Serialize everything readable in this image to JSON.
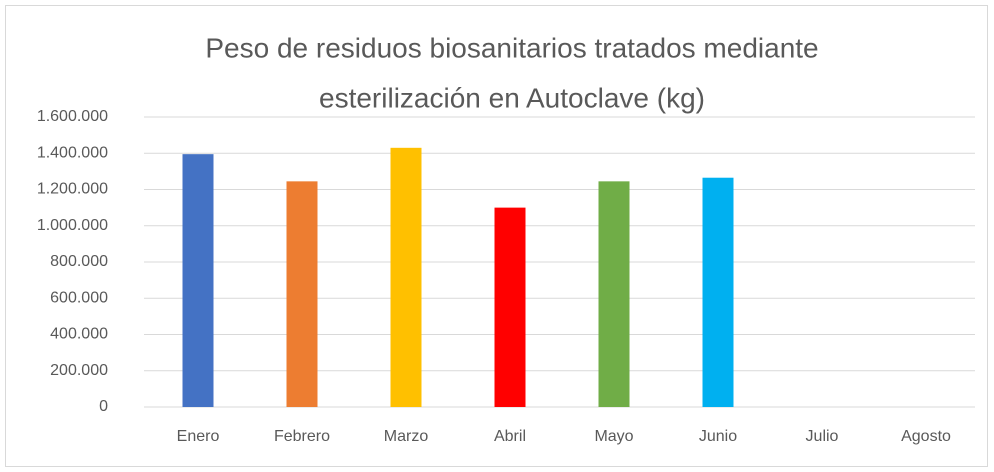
{
  "chart_data": {
    "type": "bar",
    "title": [
      "Peso de residuos biosanitarios tratados mediante",
      "esterilización en Autoclave (kg)"
    ],
    "categories": [
      "Enero",
      "Febrero",
      "Marzo",
      "Abril",
      "Mayo",
      "Junio",
      "Julio",
      "Agosto"
    ],
    "values": [
      1395000,
      1245000,
      1430000,
      1100000,
      1245000,
      1265000,
      null,
      null
    ],
    "colors": [
      "#4472c4",
      "#ed7d31",
      "#ffc000",
      "#ff0000",
      "#70ad47",
      "#00b0f0",
      "#7030a0",
      "#a5a5a5"
    ],
    "ylim": [
      0,
      1600000
    ],
    "yticks": [
      0,
      {
        "value": 200000,
        "label": "200.000"
      },
      {
        "value": 400000,
        "label": "400.000"
      },
      {
        "value": 600000,
        "label": "600.000"
      },
      {
        "value": 800000,
        "label": "800.000"
      },
      {
        "value": 1000000,
        "label": "1.000.000"
      },
      {
        "value": 1200000,
        "label": "1.200.000"
      },
      {
        "value": 1400000,
        "label": "1.400.000"
      },
      {
        "value": 1600000,
        "label": "1.600.000"
      }
    ],
    "grid": true
  }
}
